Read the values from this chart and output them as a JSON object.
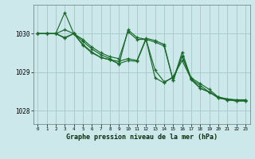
{
  "background_color": "#cce8eb",
  "grid_color": "#aacccc",
  "line_color": "#1a6b2a",
  "title": "Graphe pression niveau de la mer (hPa)",
  "xlim": [
    -0.5,
    23.5
  ],
  "ylim": [
    1027.65,
    1030.75
  ],
  "yticks": [
    1028,
    1029,
    1030
  ],
  "xticks": [
    0,
    1,
    2,
    3,
    4,
    5,
    6,
    7,
    8,
    9,
    10,
    11,
    12,
    13,
    14,
    15,
    16,
    17,
    18,
    19,
    20,
    21,
    22,
    23
  ],
  "series": [
    [
      1030.0,
      1030.0,
      1030.0,
      1030.55,
      1030.0,
      1029.85,
      1029.65,
      1029.5,
      1029.4,
      1029.35,
      1030.05,
      1029.85,
      1029.85,
      1029.05,
      1028.75,
      1028.85,
      1029.4,
      1028.85,
      1028.7,
      1028.55,
      1028.35,
      1028.3,
      1028.28,
      1028.28
    ],
    [
      1030.0,
      1030.0,
      1030.0,
      1030.1,
      1030.0,
      1029.8,
      1029.6,
      1029.45,
      1029.35,
      1029.2,
      1030.1,
      1029.9,
      1029.85,
      1028.85,
      1028.72,
      1028.88,
      1029.3,
      1028.82,
      1028.65,
      1028.48,
      1028.35,
      1028.3,
      1028.27,
      1028.27
    ],
    [
      1030.0,
      1030.0,
      1030.0,
      1029.9,
      1030.0,
      1029.72,
      1029.52,
      1029.38,
      1029.32,
      1029.28,
      1029.35,
      1029.3,
      1029.88,
      1029.82,
      1029.72,
      1028.78,
      1029.52,
      1028.82,
      1028.58,
      1028.48,
      1028.33,
      1028.28,
      1028.25,
      1028.25
    ],
    [
      1030.0,
      1030.0,
      1030.0,
      1029.88,
      1030.0,
      1029.7,
      1029.5,
      1029.38,
      1029.32,
      1029.22,
      1029.3,
      1029.28,
      1029.85,
      1029.78,
      1029.68,
      1028.78,
      1029.42,
      1028.8,
      1028.58,
      1028.48,
      1028.33,
      1028.28,
      1028.25,
      1028.25
    ]
  ]
}
